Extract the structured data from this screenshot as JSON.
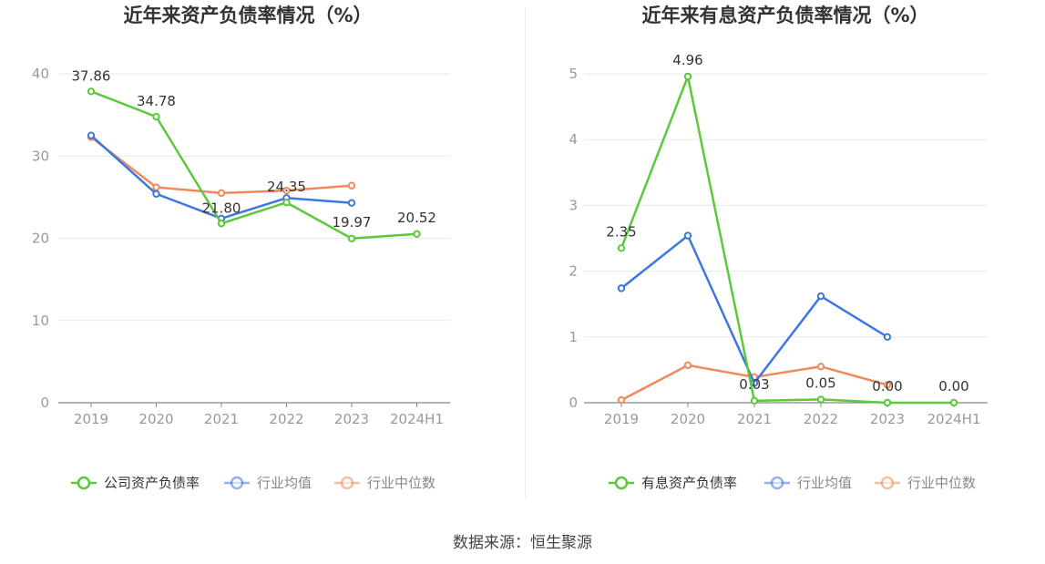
{
  "chart_data": [
    {
      "type": "line",
      "title": "近年来资产负债率情况（%）",
      "categories": [
        "2019",
        "2020",
        "2021",
        "2022",
        "2023",
        "2024H1"
      ],
      "ylim": [
        0,
        40
      ],
      "yticks": [
        0,
        10,
        20,
        30,
        40
      ],
      "grid": true,
      "legend_position": "bottom",
      "series": [
        {
          "name": "公司资产负债率",
          "color": "#5cc93a",
          "values": [
            37.86,
            34.78,
            21.8,
            24.35,
            19.97,
            20.52
          ],
          "labels": [
            "37.86",
            "34.78",
            "21.80",
            "24.35",
            "19.97",
            "20.52"
          ]
        },
        {
          "name": "行业均值",
          "color": "#3d78e0",
          "values": [
            32.5,
            25.4,
            22.4,
            24.9,
            24.3,
            null
          ]
        },
        {
          "name": "行业中位数",
          "color": "#f08a5d",
          "values": [
            32.3,
            26.2,
            25.5,
            25.8,
            26.4,
            null
          ]
        }
      ]
    },
    {
      "type": "line",
      "title": "近年来有息资产负债率情况（%）",
      "categories": [
        "2019",
        "2020",
        "2021",
        "2022",
        "2023",
        "2024H1"
      ],
      "ylim": [
        0,
        5
      ],
      "yticks": [
        0,
        1,
        2,
        3,
        4,
        5
      ],
      "grid": true,
      "legend_position": "bottom",
      "series": [
        {
          "name": "有息资产负债率",
          "color": "#5cc93a",
          "values": [
            2.35,
            4.96,
            0.03,
            0.05,
            0.0,
            0.0
          ],
          "labels": [
            "2.35",
            "4.96",
            "0.03",
            "0.05",
            "0.00",
            "0.00"
          ]
        },
        {
          "name": "行业均值",
          "color": "#3d78e0",
          "values": [
            1.74,
            2.54,
            0.3,
            1.62,
            1.0,
            null
          ]
        },
        {
          "name": "行业中位数",
          "color": "#f08a5d",
          "values": [
            0.04,
            0.57,
            0.39,
            0.55,
            0.27,
            null
          ]
        }
      ]
    }
  ],
  "footer": {
    "source": "数据来源：恒生聚源"
  }
}
